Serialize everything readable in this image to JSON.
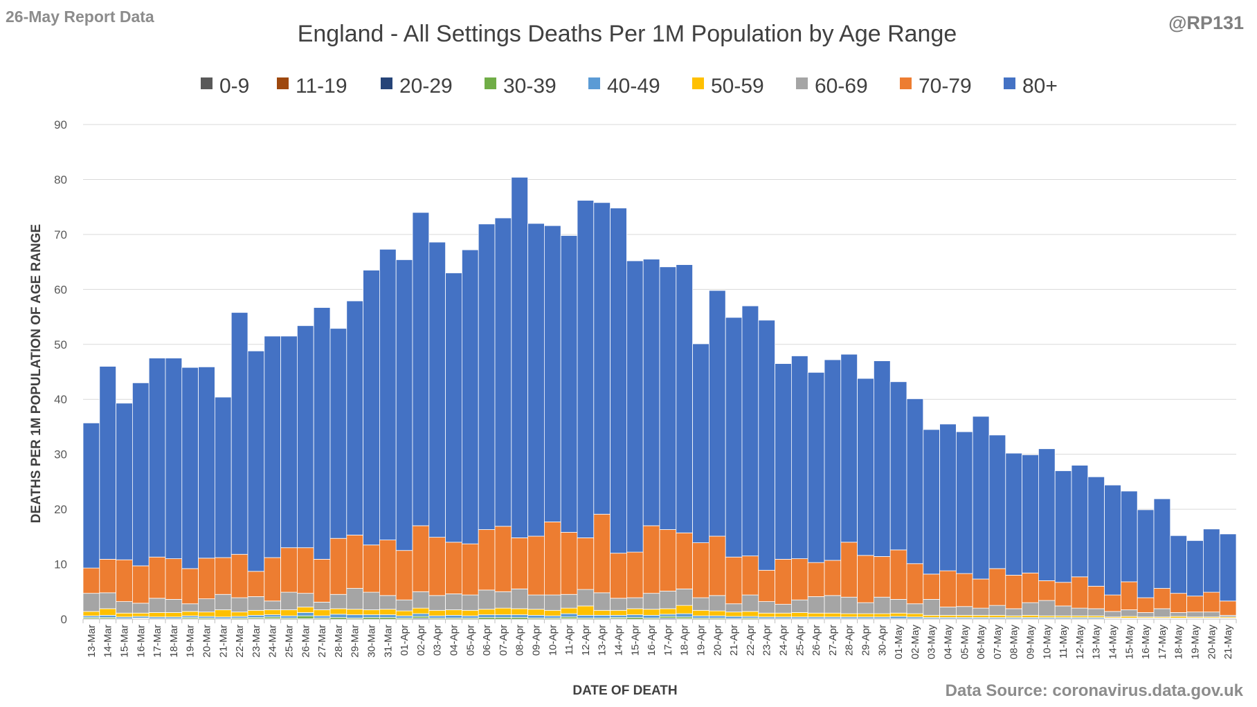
{
  "header": {
    "report_date": "26-May Report Data",
    "handle": "@RP131",
    "source": "Data Source: coronavirus.data.gov.uk"
  },
  "chart_data": {
    "type": "bar",
    "stacked": true,
    "title": "England - All Settings Deaths Per 1M Population by Age Range",
    "xlabel": "DATE OF DEATH",
    "ylabel": "DEATHS PER 1M POPULATION OF AGE RANGE",
    "ylim": [
      0,
      90
    ],
    "yticks": [
      0,
      10,
      20,
      30,
      40,
      50,
      60,
      70,
      80,
      90
    ],
    "grid": true,
    "legend_position": "top",
    "categories": [
      "13-Mar",
      "14-Mar",
      "15-Mar",
      "16-Mar",
      "17-Mar",
      "18-Mar",
      "19-Mar",
      "20-Mar",
      "21-Mar",
      "22-Mar",
      "23-Mar",
      "24-Mar",
      "25-Mar",
      "26-Mar",
      "27-Mar",
      "28-Mar",
      "29-Mar",
      "30-Mar",
      "31-Mar",
      "01-Apr",
      "02-Apr",
      "03-Apr",
      "04-Apr",
      "05-Apr",
      "06-Apr",
      "07-Apr",
      "08-Apr",
      "09-Apr",
      "10-Apr",
      "11-Apr",
      "12-Apr",
      "13-Apr",
      "14-Apr",
      "15-Apr",
      "16-Apr",
      "17-Apr",
      "18-Apr",
      "19-Apr",
      "20-Apr",
      "21-Apr",
      "22-Apr",
      "23-Apr",
      "24-Apr",
      "25-Apr",
      "26-Apr",
      "27-Apr",
      "28-Apr",
      "29-Apr",
      "30-Apr",
      "01-May",
      "02-May",
      "03-May",
      "04-May",
      "05-May",
      "06-May",
      "07-May",
      "08-May",
      "09-May",
      "10-May",
      "11-May",
      "12-May",
      "13-May",
      "14-May",
      "15-May",
      "16-May",
      "17-May",
      "18-May",
      "19-May",
      "20-May",
      "21-May"
    ],
    "series": [
      {
        "name": "0-9",
        "color": "#595959",
        "values": [
          0,
          0,
          0,
          0,
          0,
          0,
          0,
          0,
          0,
          0,
          0,
          0,
          0,
          0,
          0,
          0,
          0,
          0,
          0,
          0,
          0,
          0,
          0,
          0,
          0,
          0,
          0,
          0,
          0,
          0,
          0,
          0,
          0,
          0,
          0,
          0,
          0,
          0,
          0,
          0,
          0,
          0,
          0,
          0,
          0,
          0,
          0,
          0,
          0,
          0,
          0,
          0,
          0,
          0,
          0,
          0,
          0,
          0,
          0,
          0,
          0,
          0,
          0,
          0,
          0,
          0,
          0,
          0,
          0,
          0
        ]
      },
      {
        "name": "11-19",
        "color": "#9e480e",
        "values": [
          0,
          0,
          0,
          0,
          0,
          0,
          0,
          0,
          0,
          0,
          0,
          0,
          0,
          0,
          0,
          0,
          0,
          0,
          0,
          0,
          0,
          0,
          0,
          0,
          0,
          0,
          0,
          0,
          0,
          0,
          0,
          0,
          0,
          0,
          0,
          0,
          0,
          0,
          0,
          0,
          0,
          0,
          0,
          0,
          0,
          0,
          0,
          0,
          0,
          0,
          0,
          0,
          0,
          0,
          0,
          0,
          0,
          0,
          0,
          0,
          0,
          0,
          0,
          0,
          0,
          0,
          0,
          0,
          0,
          0
        ]
      },
      {
        "name": "20-29",
        "color": "#264478",
        "values": [
          0.1,
          0.1,
          0,
          0.1,
          0,
          0,
          0.1,
          0,
          0,
          0,
          0.1,
          0.1,
          0,
          0.1,
          0,
          0,
          0,
          0,
          0,
          0,
          0.2,
          0,
          0,
          0,
          0,
          0,
          0,
          0,
          0,
          0.1,
          0,
          0,
          0.1,
          0,
          0,
          0.2,
          0.1,
          0,
          0,
          0,
          0,
          0,
          0,
          0,
          0,
          0,
          0,
          0,
          0,
          0,
          0,
          0,
          0,
          0,
          0,
          0,
          0,
          0,
          0,
          0,
          0,
          0,
          0,
          0,
          0,
          0,
          0,
          0,
          0,
          0
        ]
      },
      {
        "name": "30-39",
        "color": "#70ad47",
        "values": [
          0.2,
          0.2,
          0.1,
          0.1,
          0.1,
          0.1,
          0.2,
          0.2,
          0.1,
          0.2,
          0.2,
          0.3,
          0.2,
          0.5,
          0.2,
          0.3,
          0.2,
          0.3,
          0.3,
          0.2,
          0.3,
          0.2,
          0.2,
          0.2,
          0.3,
          0.3,
          0.3,
          0.2,
          0.2,
          0.3,
          0.2,
          0.2,
          0.2,
          0.3,
          0.2,
          0.3,
          0.3,
          0.2,
          0.2,
          0.1,
          0.2,
          0.1,
          0.1,
          0.1,
          0.1,
          0.1,
          0.1,
          0.1,
          0.1,
          0.1,
          0.1,
          0.1,
          0.1,
          0.1,
          0.1,
          0.1,
          0.1,
          0.1,
          0.1,
          0.1,
          0.1,
          0.1,
          0.1,
          0.1,
          0.1,
          0.1,
          0.1,
          0.1,
          0.1,
          0.1
        ]
      },
      {
        "name": "40-49",
        "color": "#5b9bd5",
        "values": [
          0.3,
          0.4,
          0.3,
          0.3,
          0.3,
          0.3,
          0.3,
          0.3,
          0.3,
          0.3,
          0.4,
          0.4,
          0.4,
          0.6,
          0.4,
          0.6,
          0.6,
          0.5,
          0.5,
          0.4,
          0.5,
          0.4,
          0.5,
          0.4,
          0.5,
          0.5,
          0.5,
          0.5,
          0.4,
          0.6,
          0.5,
          0.5,
          0.4,
          0.5,
          0.5,
          0.4,
          0.6,
          0.4,
          0.4,
          0.4,
          0.3,
          0.3,
          0.3,
          0.3,
          0.3,
          0.3,
          0.3,
          0.3,
          0.3,
          0.4,
          0.3,
          0.2,
          0.2,
          0.2,
          0.2,
          0.2,
          0.2,
          0.2,
          0.2,
          0.2,
          0.2,
          0.2,
          0.1,
          0.1,
          0.1,
          0.1,
          0.1,
          0.1,
          0.1,
          0.1
        ]
      },
      {
        "name": "50-59",
        "color": "#ffc000",
        "values": [
          0.8,
          1.2,
          0.7,
          0.6,
          0.8,
          0.8,
          0.8,
          0.8,
          1.3,
          0.8,
          0.9,
          0.9,
          1.1,
          1.0,
          1.1,
          1.0,
          1.0,
          0.9,
          1.0,
          0.9,
          1.0,
          1.0,
          1.0,
          1.0,
          1.0,
          1.2,
          1.1,
          1.1,
          1.0,
          1.0,
          1.7,
          0.9,
          0.9,
          1.1,
          1.1,
          1.0,
          1.5,
          1.0,
          0.9,
          0.8,
          0.9,
          0.7,
          0.7,
          0.8,
          0.7,
          0.7,
          0.6,
          0.6,
          0.6,
          0.6,
          0.6,
          0.4,
          0.4,
          0.4,
          0.4,
          0.4,
          0.3,
          0.4,
          0.3,
          0.3,
          0.3,
          0.3,
          0.2,
          0.3,
          0.2,
          0.2,
          0.3,
          0.2,
          0.2,
          0.2
        ]
      },
      {
        "name": "60-69",
        "color": "#a5a5a5",
        "values": [
          3.3,
          2.9,
          2.1,
          1.8,
          2.6,
          2.4,
          1.4,
          2.4,
          2.8,
          2.6,
          2.5,
          1.6,
          3.2,
          2.5,
          1.4,
          2.6,
          3.8,
          3.2,
          2.5,
          2.0,
          3.0,
          2.7,
          2.9,
          2.8,
          3.5,
          3.0,
          3.6,
          2.6,
          2.8,
          2.5,
          3.0,
          3.2,
          2.2,
          2.0,
          2.9,
          3.2,
          3.0,
          2.3,
          2.8,
          1.5,
          3.0,
          2.1,
          1.6,
          2.3,
          3.0,
          3.2,
          3.0,
          2.0,
          3.0,
          2.5,
          1.8,
          2.9,
          1.5,
          1.6,
          1.3,
          1.8,
          1.3,
          2.3,
          2.8,
          1.8,
          1.4,
          1.3,
          1.0,
          1.2,
          0.8,
          1.5,
          0.7,
          0.9,
          0.9,
          0.3
        ]
      },
      {
        "name": "70-79",
        "color": "#ed7d31",
        "values": [
          4.6,
          6.1,
          7.6,
          6.8,
          7.5,
          7.4,
          6.4,
          7.4,
          6.7,
          7.9,
          4.6,
          7.9,
          8.1,
          8.3,
          7.8,
          10.2,
          9.7,
          8.6,
          10.1,
          9.0,
          12.0,
          10.6,
          9.4,
          9.3,
          11.0,
          11.9,
          9.3,
          10.7,
          13.3,
          11.3,
          9.4,
          14.3,
          8.2,
          8.3,
          12.3,
          11.2,
          10.2,
          10.0,
          10.8,
          8.5,
          7.1,
          5.7,
          8.2,
          7.5,
          6.2,
          6.4,
          10.0,
          8.6,
          7.4,
          9.0,
          7.3,
          4.6,
          6.6,
          6.0,
          5.3,
          6.7,
          6.1,
          5.4,
          3.6,
          4.3,
          5.7,
          4.1,
          3.0,
          5.1,
          2.7,
          3.7,
          3.5,
          2.9,
          3.6,
          2.6
        ]
      },
      {
        "name": "80+",
        "color": "#4472c4",
        "values": [
          26.4,
          35.1,
          28.5,
          33.3,
          36.2,
          36.5,
          36.6,
          34.8,
          29.2,
          44.0,
          40.1,
          40.3,
          38.5,
          40.4,
          45.8,
          38.2,
          42.6,
          50.0,
          52.9,
          52.9,
          57.0,
          53.7,
          49.0,
          53.5,
          55.6,
          56.1,
          65.6,
          56.9,
          53.9,
          54.0,
          61.4,
          56.7,
          62.8,
          53.0,
          48.5,
          47.8,
          48.8,
          36.2,
          44.7,
          43.6,
          45.5,
          45.5,
          35.6,
          36.9,
          34.6,
          36.5,
          34.2,
          32.2,
          35.6,
          30.6,
          30.0,
          26.3,
          26.7,
          25.8,
          29.6,
          24.3,
          22.2,
          21.5,
          24.0,
          20.3,
          20.3,
          19.9,
          20.0,
          16.5,
          16.0,
          16.3,
          10.5,
          10.1,
          11.5,
          12.2
        ]
      }
    ]
  }
}
